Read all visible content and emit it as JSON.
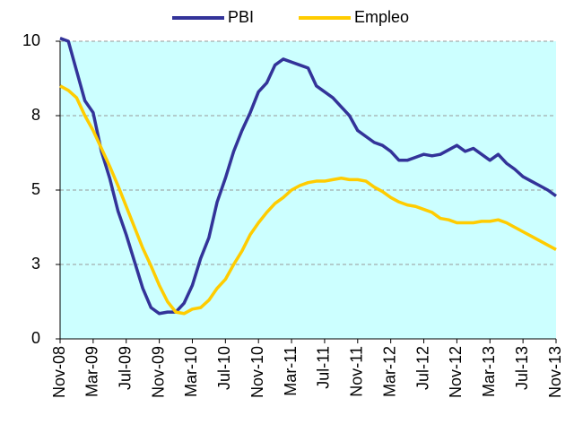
{
  "chart_data": {
    "type": "line",
    "categories": [
      "Nov-08",
      null,
      null,
      null,
      "Mar-09",
      null,
      null,
      null,
      "Jul-09",
      null,
      null,
      null,
      "Nov-09",
      null,
      null,
      null,
      "Mar-10",
      null,
      null,
      null,
      "Jul-10",
      null,
      null,
      null,
      "Nov-10",
      null,
      null,
      null,
      "Mar-11",
      null,
      null,
      null,
      "Jul-11",
      null,
      null,
      null,
      "Nov-11",
      null,
      null,
      null,
      "Mar-12",
      null,
      null,
      null,
      "Jul-12",
      null,
      null,
      null,
      "Nov-12",
      null,
      null,
      null,
      "Mar-13",
      null,
      null,
      null,
      "Jul-13",
      null,
      null,
      null,
      "Nov-13"
    ],
    "series": [
      {
        "name": "PBI",
        "color": "#333399",
        "values": [
          10.1,
          10.0,
          9.0,
          8.0,
          7.6,
          6.3,
          5.4,
          4.3,
          3.5,
          2.6,
          1.7,
          1.05,
          0.85,
          0.9,
          0.9,
          1.2,
          1.8,
          2.7,
          3.4,
          4.6,
          5.4,
          6.3,
          7.0,
          7.6,
          8.3,
          8.6,
          9.2,
          9.4,
          9.3,
          9.2,
          9.1,
          8.5,
          8.3,
          8.1,
          7.8,
          7.5,
          7.0,
          6.8,
          6.6,
          6.5,
          6.3,
          6.0,
          6.0,
          6.1,
          6.2,
          6.15,
          6.2,
          6.35,
          6.5,
          6.3,
          6.4,
          6.2,
          6.0,
          6.2,
          5.9,
          5.7,
          5.45,
          5.3,
          5.15,
          5.0,
          4.8
        ]
      },
      {
        "name": "Empleo",
        "color": "#ffcc00",
        "values": [
          8.5,
          8.35,
          8.1,
          7.5,
          7.0,
          6.4,
          5.8,
          5.15,
          4.45,
          3.75,
          3.05,
          2.45,
          1.8,
          1.25,
          0.9,
          0.85,
          1.0,
          1.05,
          1.3,
          1.7,
          2.0,
          2.5,
          2.95,
          3.5,
          3.9,
          4.25,
          4.55,
          4.75,
          5.0,
          5.15,
          5.25,
          5.3,
          5.3,
          5.35,
          5.4,
          5.35,
          5.35,
          5.3,
          5.1,
          4.95,
          4.75,
          4.6,
          4.5,
          4.45,
          4.35,
          4.25,
          4.05,
          4.0,
          3.9,
          3.9,
          3.9,
          3.95,
          3.95,
          4.0,
          3.9,
          3.75,
          3.6,
          3.45,
          3.3,
          3.15,
          3.0
        ]
      }
    ],
    "ylim": [
      0,
      10
    ],
    "yticks": [
      0,
      {
        "value": 2.5,
        "label": "3"
      },
      5,
      {
        "value": 7.5,
        "label": "8"
      },
      10
    ],
    "grid": true,
    "legend": "top",
    "plot_background": "#ccffff"
  }
}
